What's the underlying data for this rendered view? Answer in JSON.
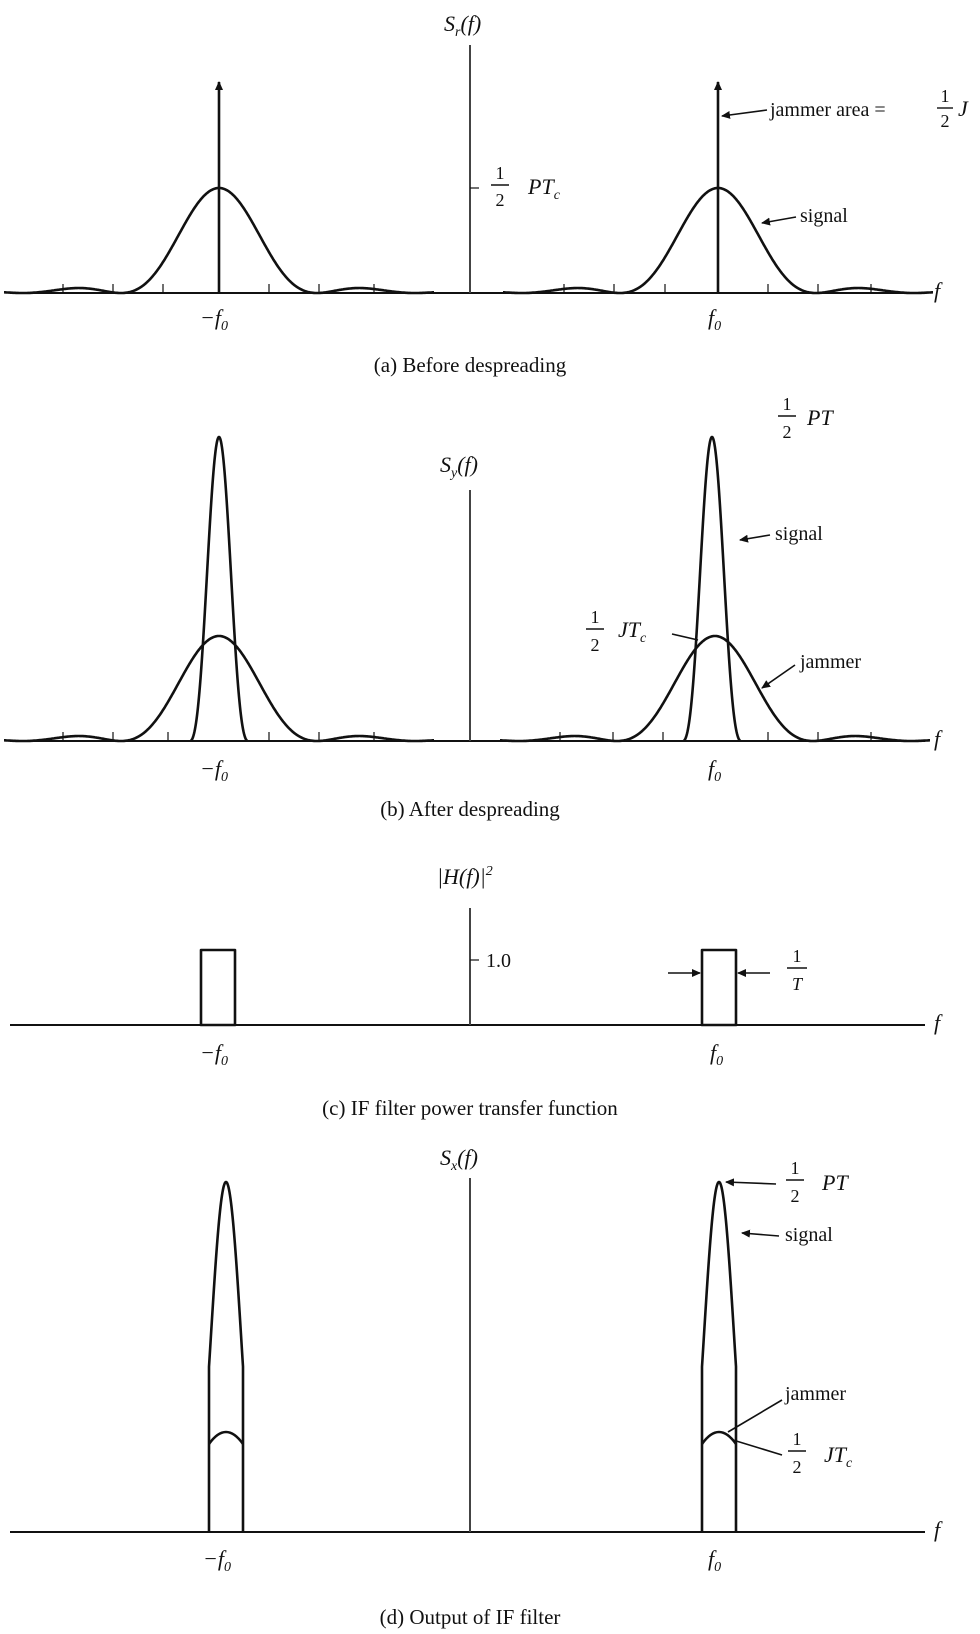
{
  "panel_a": {
    "y_label_main": "S",
    "y_label_sub": "r",
    "y_label_arg": "(f)",
    "x_label": "f",
    "left_tick": "−f",
    "right_tick": "f",
    "tick_sub": "0",
    "level_num": "1",
    "level_den": "2",
    "level_text": "PT",
    "level_sub": "c",
    "jammer_label": "jammer area =",
    "jammer_num": "1",
    "jammer_den": "2",
    "jammer_var": "J",
    "signal_label": "signal",
    "caption": "(a)  Before despreading"
  },
  "panel_b": {
    "y_label_main": "S",
    "y_label_sub": "y",
    "y_label_arg": "(f)",
    "x_label": "f",
    "left_tick": "−f",
    "right_tick": "f",
    "tick_sub": "0",
    "peak_num": "1",
    "peak_den": "2",
    "peak_text": "PT",
    "signal_label": "signal",
    "jt_num": "1",
    "jt_den": "2",
    "jt_text": "JT",
    "jt_sub": "c",
    "jammer_label": "jammer",
    "caption": "(b)  After despreading"
  },
  "panel_c": {
    "y_label": "|H(f)|",
    "y_label_sup": "2",
    "x_label": "f",
    "left_tick": "−f",
    "right_tick": "f",
    "tick_sub": "0",
    "level": "1.0",
    "width_num": "1",
    "width_den": "T",
    "caption": "(c)  IF filter power transfer function"
  },
  "panel_d": {
    "y_label_main": "S",
    "y_label_sub": "x",
    "y_label_arg": "(f)",
    "x_label": "f",
    "left_tick": "−f",
    "right_tick": "f",
    "tick_sub": "0",
    "peak_num": "1",
    "peak_den": "2",
    "peak_text": "PT",
    "signal_label": "signal",
    "jammer_label": "jammer",
    "jt_num": "1",
    "jt_den": "2",
    "jt_text": "JT",
    "jt_sub": "c",
    "caption": "(d)  Output of IF filter"
  },
  "colors": {
    "ink": "#111111",
    "axis": "#444444",
    "paper": "#ffffff"
  }
}
